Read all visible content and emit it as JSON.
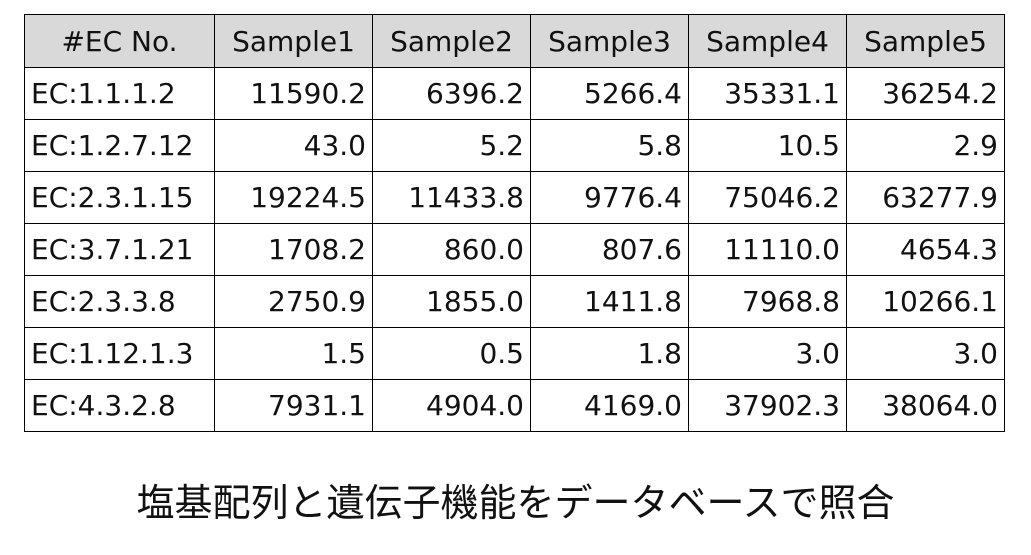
{
  "table": {
    "header": [
      "#EC No.",
      "Sample1",
      "Sample2",
      "Sample3",
      "Sample4",
      "Sample5"
    ],
    "rows": [
      [
        "EC:1.1.1.2",
        "11590.2",
        "6396.2",
        "5266.4",
        "35331.1",
        "36254.2"
      ],
      [
        "EC:1.2.7.12",
        "43.0",
        "5.2",
        "5.8",
        "10.5",
        "2.9"
      ],
      [
        "EC:2.3.1.15",
        "19224.5",
        "11433.8",
        "9776.4",
        "75046.2",
        "63277.9"
      ],
      [
        "EC:3.7.1.21",
        "1708.2",
        "860.0",
        "807.6",
        "11110.0",
        "4654.3"
      ],
      [
        "EC:2.3.3.8",
        "2750.9",
        "1855.0",
        "1411.8",
        "7968.8",
        "10266.1"
      ],
      [
        "EC:1.12.1.3",
        "1.5",
        "0.5",
        "1.8",
        "3.0",
        "3.0"
      ],
      [
        "EC:4.3.2.8",
        "7931.1",
        "4904.0",
        "4169.0",
        "37902.3",
        "38064.0"
      ]
    ]
  },
  "caption": "塩基配列と遺伝子機能をデータベースで照合"
}
